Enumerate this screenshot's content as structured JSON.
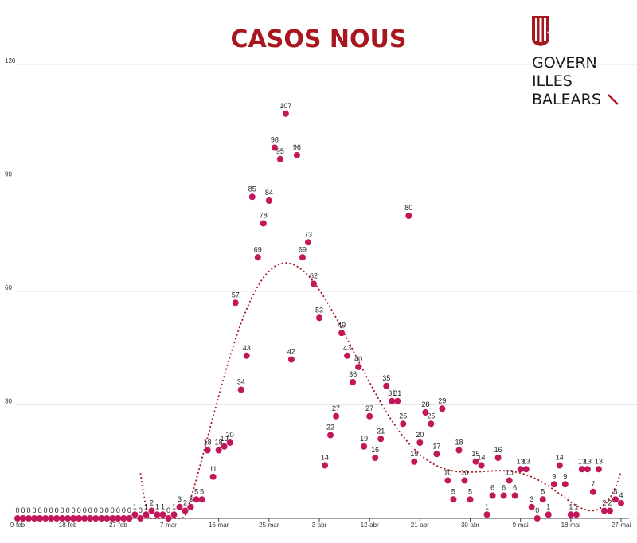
{
  "title": "CASOS NOUS",
  "logo": {
    "line1": "GOVERN",
    "line2": "ILLES",
    "line3": "BALEARS",
    "mark_icon": "govern-balears-emblem",
    "brand_color": "#a8171f"
  },
  "chart_data": {
    "type": "scatter",
    "title": "CASOS NOUS",
    "xlabel": "",
    "ylabel": "",
    "ylim": [
      0,
      120
    ],
    "yticks": [
      0,
      30,
      60,
      90,
      120
    ],
    "ytick_labels": [
      "",
      "30",
      "60",
      "90",
      "120"
    ],
    "x_tick_labels": [
      "9-feb",
      "18-feb",
      "27-feb",
      "7-mar",
      "16-mar",
      "25-mar",
      "3-abr",
      "12-abr",
      "21-abr",
      "30-abr",
      "9-mai",
      "18-mai",
      "27-mai"
    ],
    "x_start_label": "9-feb",
    "point_color": "#c2185b",
    "trend_color": "#a8171f",
    "trend": "polynomial",
    "grid": true,
    "values": [
      0,
      0,
      0,
      0,
      0,
      0,
      0,
      0,
      0,
      0,
      0,
      0,
      0,
      0,
      0,
      0,
      0,
      0,
      0,
      0,
      0,
      1,
      0,
      1,
      2,
      1,
      1,
      0,
      1,
      3,
      2,
      3,
      5,
      5,
      18,
      11,
      18,
      19,
      20,
      57,
      34,
      43,
      85,
      69,
      78,
      84,
      98,
      95,
      107,
      42,
      96,
      69,
      73,
      62,
      53,
      14,
      22,
      27,
      49,
      43,
      36,
      40,
      19,
      27,
      16,
      21,
      35,
      31,
      31,
      25,
      80,
      15,
      20,
      28,
      25,
      17,
      29,
      10,
      5,
      18,
      10,
      5,
      15,
      14,
      1,
      6,
      16,
      6,
      10,
      6,
      13,
      13,
      3,
      0,
      5,
      1,
      9,
      14,
      9,
      1,
      1,
      13,
      13,
      7,
      13,
      2,
      2,
      5,
      4
    ]
  }
}
